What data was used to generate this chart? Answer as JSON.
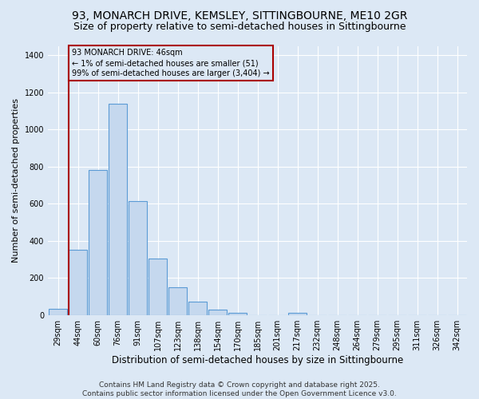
{
  "title1": "93, MONARCH DRIVE, KEMSLEY, SITTINGBOURNE, ME10 2GR",
  "title2": "Size of property relative to semi-detached houses in Sittingbourne",
  "xlabel": "Distribution of semi-detached houses by size in Sittingbourne",
  "ylabel": "Number of semi-detached properties",
  "categories": [
    "29sqm",
    "44sqm",
    "60sqm",
    "76sqm",
    "91sqm",
    "107sqm",
    "123sqm",
    "138sqm",
    "154sqm",
    "170sqm",
    "185sqm",
    "201sqm",
    "217sqm",
    "232sqm",
    "248sqm",
    "264sqm",
    "279sqm",
    "295sqm",
    "311sqm",
    "326sqm",
    "342sqm"
  ],
  "values": [
    35,
    350,
    780,
    1140,
    615,
    305,
    150,
    70,
    28,
    10,
    0,
    0,
    10,
    0,
    0,
    0,
    0,
    0,
    0,
    0,
    0
  ],
  "bar_color": "#c5d8ee",
  "bar_edge_color": "#5b9bd5",
  "vline_color": "#aa0000",
  "annotation_text": "93 MONARCH DRIVE: 46sqm\n← 1% of semi-detached houses are smaller (51)\n99% of semi-detached houses are larger (3,404) →",
  "annotation_box_color": "#aa0000",
  "ylim": [
    0,
    1450
  ],
  "yticks": [
    0,
    200,
    400,
    600,
    800,
    1000,
    1200,
    1400
  ],
  "footer_text": "Contains HM Land Registry data © Crown copyright and database right 2025.\nContains public sector information licensed under the Open Government Licence v3.0.",
  "bg_color": "#dce8f5",
  "grid_color": "#ffffff",
  "title1_fontsize": 10,
  "title2_fontsize": 9,
  "xlabel_fontsize": 8.5,
  "ylabel_fontsize": 8,
  "tick_fontsize": 7,
  "footer_fontsize": 6.5
}
